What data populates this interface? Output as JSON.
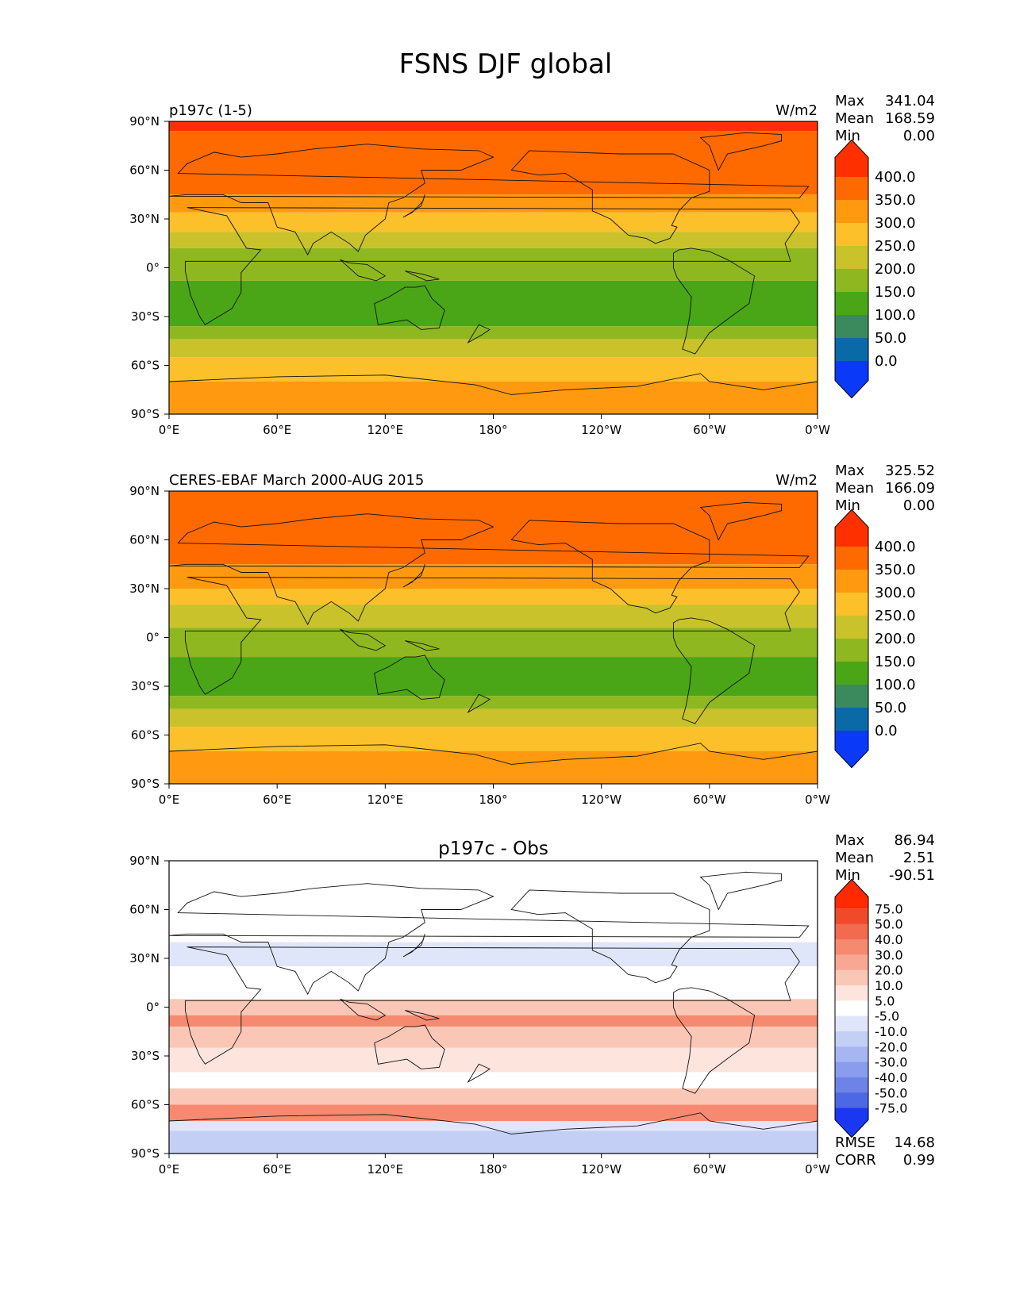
{
  "figure_title": "FSNS DJF global",
  "chart_data": [
    {
      "type": "heatmap",
      "panel": "test",
      "title_left": "p197c (1-5)",
      "units": "W/m2",
      "stats": [
        {
          "label": "Max",
          "value": "341.04"
        },
        {
          "label": "Mean",
          "value": "168.59"
        },
        {
          "label": "Min",
          "value": "0.00"
        }
      ],
      "x_ticks": [
        "0°E",
        "60°E",
        "120°E",
        "180°",
        "120°W",
        "60°W",
        "0°W"
      ],
      "y_ticks": [
        "90°N",
        "60°N",
        "30°N",
        "0°",
        "30°S",
        "60°S",
        "90°S"
      ],
      "xlim": [
        0,
        360
      ],
      "ylim": [
        -90,
        90
      ],
      "colorbar": {
        "labels": [
          "400.0",
          "350.0",
          "300.0",
          "250.0",
          "200.0",
          "150.0",
          "100.0",
          "50.0",
          "0.0"
        ],
        "colors": [
          "#ff3000",
          "#ff6a00",
          "#ff9a10",
          "#fbc02a",
          "#c9c22a",
          "#8fb820",
          "#4aa617",
          "#3a8a5e",
          "#0a6aa8",
          "#0a3af8"
        ]
      },
      "zonal_bands": [
        {
          "lat_max": 90,
          "lat_min": 84,
          "level": 0
        },
        {
          "lat_max": 84,
          "lat_min": 45,
          "level": 1
        },
        {
          "lat_max": 45,
          "lat_min": 34,
          "level": 2
        },
        {
          "lat_max": 34,
          "lat_min": 22,
          "level": 3
        },
        {
          "lat_max": 22,
          "lat_min": 12,
          "level": 4
        },
        {
          "lat_max": 12,
          "lat_min": -8,
          "level": 5
        },
        {
          "lat_max": -8,
          "lat_min": -36,
          "level": 6
        },
        {
          "lat_max": -36,
          "lat_min": -44,
          "level": 5
        },
        {
          "lat_max": -44,
          "lat_min": -55,
          "level": 4
        },
        {
          "lat_max": -55,
          "lat_min": -70,
          "level": 3
        },
        {
          "lat_max": -70,
          "lat_min": -90,
          "level": 2
        }
      ]
    },
    {
      "type": "heatmap",
      "panel": "reference",
      "title_left": "CERES-EBAF March 2000-AUG 2015",
      "units": "W/m2",
      "stats": [
        {
          "label": "Max",
          "value": "325.52"
        },
        {
          "label": "Mean",
          "value": "166.09"
        },
        {
          "label": "Min",
          "value": "0.00"
        }
      ],
      "x_ticks": [
        "0°E",
        "60°E",
        "120°E",
        "180°",
        "120°W",
        "60°W",
        "0°W"
      ],
      "y_ticks": [
        "90°N",
        "60°N",
        "30°N",
        "0°",
        "30°S",
        "60°S",
        "90°S"
      ],
      "xlim": [
        0,
        360
      ],
      "ylim": [
        -90,
        90
      ],
      "colorbar": {
        "labels": [
          "400.0",
          "350.0",
          "300.0",
          "250.0",
          "200.0",
          "150.0",
          "100.0",
          "50.0",
          "0.0"
        ],
        "colors": [
          "#ff3000",
          "#ff6a00",
          "#ff9a10",
          "#fbc02a",
          "#c9c22a",
          "#8fb820",
          "#4aa617",
          "#3a8a5e",
          "#0a6aa8",
          "#0a3af8"
        ]
      },
      "zonal_bands": [
        {
          "lat_max": 90,
          "lat_min": 45,
          "level": 1
        },
        {
          "lat_max": 45,
          "lat_min": 30,
          "level": 2
        },
        {
          "lat_max": 30,
          "lat_min": 20,
          "level": 3
        },
        {
          "lat_max": 20,
          "lat_min": 6,
          "level": 4
        },
        {
          "lat_max": 6,
          "lat_min": -12,
          "level": 5
        },
        {
          "lat_max": -12,
          "lat_min": -36,
          "level": 6
        },
        {
          "lat_max": -36,
          "lat_min": -44,
          "level": 5
        },
        {
          "lat_max": -44,
          "lat_min": -55,
          "level": 4
        },
        {
          "lat_max": -55,
          "lat_min": -70,
          "level": 3
        },
        {
          "lat_max": -70,
          "lat_min": -90,
          "level": 2
        }
      ]
    },
    {
      "type": "heatmap",
      "panel": "difference",
      "title_center": "p197c - Obs",
      "stats": [
        {
          "label": "Max",
          "value": "86.94"
        },
        {
          "label": "Mean",
          "value": "2.51"
        },
        {
          "label": "Min",
          "value": "-90.51"
        }
      ],
      "extra_stats": [
        {
          "label": "RMSE",
          "value": "14.68"
        },
        {
          "label": "CORR",
          "value": "0.99"
        }
      ],
      "x_ticks": [
        "0°E",
        "60°E",
        "120°E",
        "180°",
        "120°W",
        "60°W",
        "0°W"
      ],
      "y_ticks": [
        "90°N",
        "60°N",
        "30°N",
        "0°",
        "30°S",
        "60°S",
        "90°S"
      ],
      "xlim": [
        0,
        360
      ],
      "ylim": [
        -90,
        90
      ],
      "colorbar": {
        "labels": [
          "75.0",
          "50.0",
          "40.0",
          "30.0",
          "20.0",
          "10.0",
          "5.0",
          "-5.0",
          "-10.0",
          "-20.0",
          "-30.0",
          "-40.0",
          "-50.0",
          "-75.0"
        ],
        "colors": [
          "#ff2a00",
          "#f04a2a",
          "#f26a50",
          "#f58a70",
          "#f8a892",
          "#fac6b6",
          "#fde4dc",
          "#ffffff",
          "#e0e6fa",
          "#c4cff6",
          "#a7b6f2",
          "#8a9ced",
          "#6d83e8",
          "#4d68e4",
          "#1a38f2"
        ]
      },
      "zonal_bands": [
        {
          "lat_max": 90,
          "lat_min": 40,
          "level": 7
        },
        {
          "lat_max": 40,
          "lat_min": 25,
          "level": 8
        },
        {
          "lat_max": 25,
          "lat_min": 5,
          "level": 7
        },
        {
          "lat_max": 5,
          "lat_min": -5,
          "level": 5
        },
        {
          "lat_max": -5,
          "lat_min": -12,
          "level": 3
        },
        {
          "lat_max": -12,
          "lat_min": -25,
          "level": 5
        },
        {
          "lat_max": -25,
          "lat_min": -40,
          "level": 6
        },
        {
          "lat_max": -40,
          "lat_min": -50,
          "level": 7
        },
        {
          "lat_max": -50,
          "lat_min": -60,
          "level": 5
        },
        {
          "lat_max": -60,
          "lat_min": -70,
          "level": 3
        },
        {
          "lat_max": -70,
          "lat_min": -76,
          "level": 8
        },
        {
          "lat_max": -76,
          "lat_min": -90,
          "level": 9
        }
      ]
    }
  ]
}
